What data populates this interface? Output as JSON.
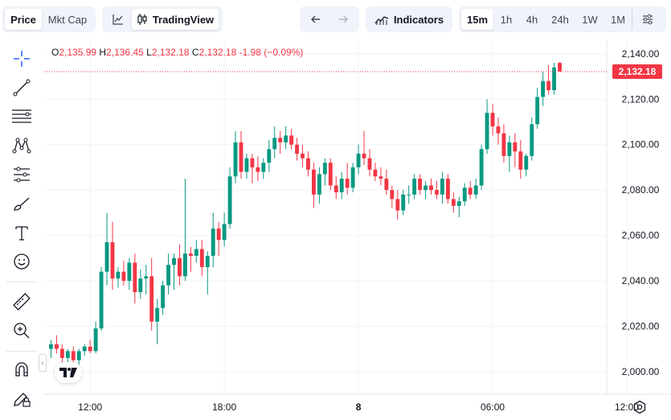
{
  "toolbar": {
    "price_tab": "Price",
    "mktcap_tab": "Mkt Cap",
    "line_chart_icon": "line-chart-icon",
    "tradingview_label": "TradingView",
    "undo_icon": "arrow-left-icon",
    "redo_icon": "arrow-right-icon",
    "indicators_label": "Indicators",
    "intervals": [
      "15m",
      "1h",
      "4h",
      "24h",
      "1W",
      "1M"
    ],
    "active_interval": "15m",
    "settings_icon": "sliders-icon"
  },
  "ohlc": {
    "o_label": "O",
    "o_value": "2,135.99",
    "h_label": "H",
    "h_value": "2,136.45",
    "l_label": "L",
    "l_value": "2,132.18",
    "c_label": "C",
    "c_value": "2,132.18",
    "change": "-1.98 (−0.09%)"
  },
  "last_price": "2,132.18",
  "colors": {
    "up": "#089981",
    "down": "#f23645",
    "grid": "#f0f3fa",
    "accent": "#2962ff"
  },
  "chart_data": {
    "type": "candlestick",
    "ylim": [
      1990,
      2146
    ],
    "y_ticks": [
      "2,140.00",
      "2,120.00",
      "2,100.00",
      "2,080.00",
      "2,060.00",
      "2,040.00",
      "2,020.00",
      "2,000.00"
    ],
    "y_tick_values": [
      2140,
      2120,
      2100,
      2080,
      2060,
      2040,
      2020,
      2000
    ],
    "x_ticks": [
      "12:00",
      "18:00",
      "8",
      "06:00",
      "12:00"
    ],
    "x_tick_positions": [
      7,
      31,
      55,
      79,
      103
    ],
    "candles": [
      [
        2010,
        2014,
        2006,
        2012
      ],
      [
        2012,
        2016,
        2008,
        2010
      ],
      [
        2010,
        2012,
        2004,
        2006
      ],
      [
        2006,
        2010,
        2003,
        2009
      ],
      [
        2009,
        2011,
        2004,
        2005
      ],
      [
        2005,
        2010,
        2003,
        2009
      ],
      [
        2009,
        2012,
        2007,
        2011
      ],
      [
        2011,
        2014,
        2008,
        2009
      ],
      [
        2009,
        2022,
        2008,
        2019
      ],
      [
        2019,
        2046,
        2018,
        2044
      ],
      [
        2044,
        2070,
        2038,
        2057
      ],
      [
        2057,
        2066,
        2036,
        2041
      ],
      [
        2041,
        2046,
        2037,
        2044
      ],
      [
        2044,
        2049,
        2038,
        2040
      ],
      [
        2040,
        2050,
        2036,
        2048
      ],
      [
        2048,
        2052,
        2030,
        2035
      ],
      [
        2035,
        2045,
        2032,
        2041
      ],
      [
        2041,
        2047,
        2034,
        2042
      ],
      [
        2042,
        2050,
        2018,
        2022
      ],
      [
        2022,
        2032,
        2012,
        2028
      ],
      [
        2028,
        2040,
        2025,
        2038
      ],
      [
        2038,
        2052,
        2034,
        2047
      ],
      [
        2047,
        2052,
        2036,
        2050
      ],
      [
        2050,
        2056,
        2038,
        2042
      ],
      [
        2042,
        2085,
        2040,
        2052
      ],
      [
        2052,
        2055,
        2044,
        2051
      ],
      [
        2051,
        2058,
        2048,
        2054
      ],
      [
        2054,
        2058,
        2042,
        2046
      ],
      [
        2046,
        2053,
        2034,
        2051
      ],
      [
        2051,
        2070,
        2046,
        2063
      ],
      [
        2063,
        2066,
        2051,
        2058
      ],
      [
        2058,
        2070,
        2055,
        2065
      ],
      [
        2065,
        2090,
        2063,
        2086
      ],
      [
        2086,
        2106,
        2083,
        2101
      ],
      [
        2101,
        2106,
        2085,
        2088
      ],
      [
        2088,
        2096,
        2085,
        2094
      ],
      [
        2094,
        2096,
        2083,
        2090
      ],
      [
        2090,
        2095,
        2084,
        2088
      ],
      [
        2088,
        2094,
        2085,
        2092
      ],
      [
        2092,
        2102,
        2088,
        2098
      ],
      [
        2098,
        2108,
        2094,
        2103
      ],
      [
        2103,
        2106,
        2096,
        2101
      ],
      [
        2101,
        2108,
        2098,
        2104
      ],
      [
        2104,
        2107,
        2098,
        2100
      ],
      [
        2100,
        2103,
        2093,
        2096
      ],
      [
        2096,
        2100,
        2090,
        2094
      ],
      [
        2094,
        2097,
        2086,
        2089
      ],
      [
        2089,
        2092,
        2072,
        2078
      ],
      [
        2078,
        2090,
        2074,
        2087
      ],
      [
        2087,
        2094,
        2082,
        2092
      ],
      [
        2092,
        2094,
        2080,
        2082
      ],
      [
        2082,
        2086,
        2076,
        2079
      ],
      [
        2079,
        2088,
        2076,
        2085
      ],
      [
        2085,
        2092,
        2078,
        2081
      ],
      [
        2081,
        2092,
        2079,
        2090
      ],
      [
        2090,
        2100,
        2087,
        2096
      ],
      [
        2096,
        2106,
        2091,
        2094
      ],
      [
        2094,
        2098,
        2086,
        2089
      ],
      [
        2089,
        2092,
        2084,
        2086
      ],
      [
        2086,
        2090,
        2082,
        2085
      ],
      [
        2085,
        2089,
        2078,
        2080
      ],
      [
        2080,
        2082,
        2072,
        2076
      ],
      [
        2076,
        2080,
        2067,
        2071
      ],
      [
        2071,
        2080,
        2069,
        2078
      ],
      [
        2078,
        2082,
        2074,
        2078
      ],
      [
        2078,
        2087,
        2076,
        2085
      ],
      [
        2085,
        2087,
        2078,
        2080
      ],
      [
        2080,
        2084,
        2076,
        2082
      ],
      [
        2082,
        2085,
        2078,
        2080
      ],
      [
        2080,
        2084,
        2076,
        2078
      ],
      [
        2078,
        2088,
        2074,
        2085
      ],
      [
        2085,
        2087,
        2074,
        2076
      ],
      [
        2076,
        2079,
        2070,
        2073
      ],
      [
        2073,
        2077,
        2068,
        2075
      ],
      [
        2075,
        2083,
        2073,
        2081
      ],
      [
        2081,
        2084,
        2076,
        2078
      ],
      [
        2078,
        2085,
        2076,
        2082
      ],
      [
        2082,
        2100,
        2080,
        2098
      ],
      [
        2098,
        2120,
        2096,
        2114
      ],
      [
        2114,
        2118,
        2104,
        2108
      ],
      [
        2108,
        2112,
        2100,
        2105
      ],
      [
        2105,
        2109,
        2092,
        2095
      ],
      [
        2095,
        2104,
        2088,
        2101
      ],
      [
        2101,
        2105,
        2090,
        2097
      ],
      [
        2097,
        2102,
        2085,
        2089
      ],
      [
        2089,
        2096,
        2086,
        2095
      ],
      [
        2095,
        2112,
        2093,
        2109
      ],
      [
        2109,
        2125,
        2107,
        2121
      ],
      [
        2121,
        2132,
        2117,
        2128
      ],
      [
        2128,
        2135,
        2122,
        2124
      ],
      [
        2124,
        2136,
        2122,
        2134
      ],
      [
        2135.99,
        2136.45,
        2132.18,
        2132.18
      ]
    ]
  }
}
